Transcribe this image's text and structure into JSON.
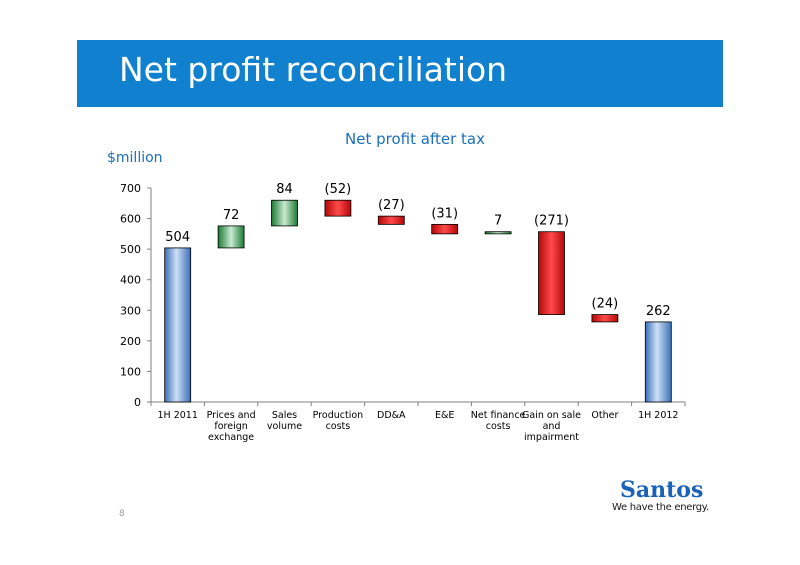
{
  "header": {
    "title": "Net profit reconciliation"
  },
  "footer": {
    "page_number": "8"
  },
  "logo": {
    "name": "Santos",
    "tagline": "We have the energy."
  },
  "colors": {
    "banner": "#1180cf",
    "increase": "#1e8c3a",
    "decrease": "#cc1010",
    "total": "#6a98d6"
  },
  "chart_data": {
    "type": "bar",
    "subtype": "waterfall",
    "title": "Net profit after tax",
    "ylabel": "$million",
    "xlabel": "",
    "ylim": [
      0,
      700
    ],
    "yticks": [
      "0",
      "100",
      "200",
      "300",
      "400",
      "500",
      "600",
      "700"
    ],
    "grid": false,
    "categories": [
      [
        "1H 2011"
      ],
      [
        "Prices and",
        "foreign",
        "exchange"
      ],
      [
        "Sales",
        "volume"
      ],
      [
        "Production",
        "costs"
      ],
      [
        "DD&A"
      ],
      [
        "E&E"
      ],
      [
        "Net finance",
        "costs"
      ],
      [
        "Gain on sale",
        "and",
        "impairment"
      ],
      [
        "Other"
      ],
      [
        "1H 2012"
      ]
    ],
    "values": [
      504,
      72,
      84,
      -52,
      -27,
      -31,
      7,
      -271,
      -24,
      262
    ],
    "kinds": [
      "total",
      "increase",
      "increase",
      "decrease",
      "decrease",
      "decrease",
      "increase",
      "decrease",
      "decrease",
      "total"
    ],
    "data_labels": [
      "504",
      "72",
      "84",
      "(52)",
      "(27)",
      "(31)",
      "7",
      "(271)",
      "(24)",
      "262"
    ]
  }
}
